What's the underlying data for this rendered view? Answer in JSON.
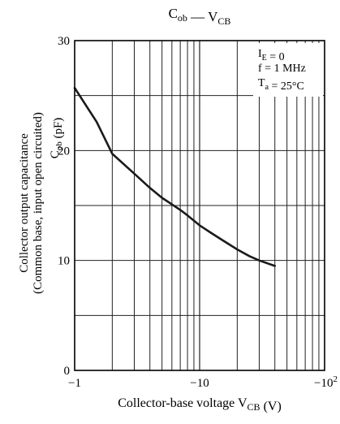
{
  "chart_data": {
    "type": "line",
    "title": {
      "main": "C",
      "main_sub": "ob",
      "sep": " — ",
      "var": "V",
      "var_sub": "CB"
    },
    "xlabel": {
      "text": "Collector-base voltage  V",
      "sub": "CB",
      "unit": "  (V)"
    },
    "ylabel": {
      "line1": "Collector output capacitance",
      "line2": "(Common base, input open circuited)",
      "sym": "C",
      "sym_sub": "ob",
      "unit": "  (pF)"
    },
    "x_scale": "log",
    "x_reversed": true,
    "xlim": [
      -1,
      -100
    ],
    "ylim": [
      0,
      30
    ],
    "grid": true,
    "x_ticks": [
      {
        "value": -1,
        "label": "−1"
      },
      {
        "value": -10,
        "label": "−10"
      },
      {
        "value": -100,
        "label": "−10",
        "sup": "2"
      }
    ],
    "y_ticks": [
      {
        "value": 0,
        "label": "0"
      },
      {
        "value": 10,
        "label": "10"
      },
      {
        "value": 20,
        "label": "20"
      },
      {
        "value": 30,
        "label": "30"
      }
    ],
    "conditions": [
      {
        "sym": "I",
        "sub": "E",
        "text": " = 0"
      },
      {
        "sym": "f",
        "sub": "",
        "text": "  = 1 MHz"
      },
      {
        "sym": "T",
        "sub": "a",
        "text": " = 25°C"
      }
    ],
    "series": [
      {
        "x": [
          -1,
          -1.5,
          -2,
          -3,
          -4,
          -5,
          -6,
          -7,
          -8,
          -10,
          -12,
          -15,
          -20,
          -25,
          -30,
          -40
        ],
        "y": [
          25.7,
          22.6,
          19.7,
          17.9,
          16.6,
          15.7,
          15.1,
          14.6,
          14.1,
          13.2,
          12.6,
          11.9,
          11.0,
          10.4,
          10.0,
          9.5
        ]
      }
    ],
    "colors": {
      "line": "#1a1a1a",
      "grid": "#222222",
      "axis": "#000000"
    }
  }
}
